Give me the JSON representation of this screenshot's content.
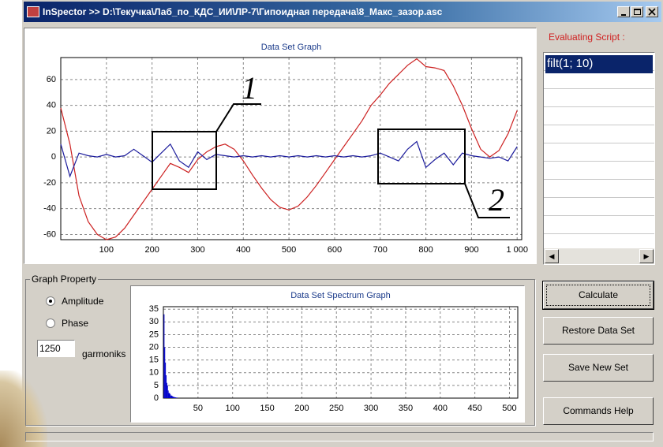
{
  "window": {
    "title": "InSpector >> D:\\Текучка\\Лаб_по_КДС_ИИ\\ЛР-7\\Гипоидная передача\\8_Макс_зазор.asc"
  },
  "chart_data": [
    {
      "type": "line",
      "title": "Data Set Graph",
      "x": [
        0,
        20,
        40,
        60,
        80,
        100,
        120,
        140,
        160,
        180,
        200,
        220,
        240,
        260,
        280,
        300,
        320,
        340,
        360,
        380,
        400,
        420,
        440,
        460,
        480,
        500,
        520,
        540,
        560,
        580,
        600,
        620,
        640,
        660,
        680,
        700,
        720,
        740,
        760,
        780,
        800,
        820,
        840,
        860,
        880,
        900,
        920,
        940,
        960,
        980,
        1000
      ],
      "series": [
        {
          "color": "#cc2020",
          "values": [
            38,
            10,
            -30,
            -50,
            -60,
            -64,
            -62,
            -55,
            -45,
            -35,
            -25,
            -15,
            -5,
            -8,
            -12,
            -2,
            4,
            8,
            10,
            6,
            -3,
            -14,
            -24,
            -33,
            -39,
            -41,
            -38,
            -31,
            -22,
            -12,
            -2,
            8,
            18,
            28,
            40,
            48,
            57,
            64,
            71,
            76,
            70,
            69,
            67,
            55,
            40,
            22,
            6,
            0,
            5,
            18,
            36
          ]
        },
        {
          "color": "#1c1c9c",
          "values": [
            10,
            -15,
            3,
            1,
            0,
            2,
            0,
            1,
            6,
            1,
            -4,
            3,
            10,
            -3,
            -8,
            4,
            -2,
            2,
            1,
            0,
            1,
            0,
            1,
            0,
            1,
            0,
            1,
            0,
            1,
            0,
            1,
            0,
            1,
            0,
            1,
            3,
            0,
            -3,
            6,
            12,
            -8,
            -2,
            3,
            -6,
            3,
            1,
            0,
            -1,
            0,
            -3,
            8
          ]
        }
      ],
      "xlim": [
        0,
        1010
      ],
      "ylim": [
        -64,
        77
      ],
      "xticks": [
        100,
        200,
        300,
        400,
        500,
        600,
        700,
        800,
        900,
        {
          "value": 1000,
          "label": "1 000"
        }
      ],
      "yticks": [
        -60,
        -40,
        -20,
        0,
        20,
        40,
        60
      ],
      "grid": true,
      "annotations": [
        "1",
        "2"
      ]
    },
    {
      "type": "bar",
      "title": "Data Set Spectrum Graph",
      "x": [
        1,
        2,
        3,
        4,
        5,
        6,
        7,
        8,
        9,
        10,
        11,
        12,
        13,
        14,
        15,
        16,
        17,
        18,
        19,
        20
      ],
      "values": [
        33,
        20,
        14,
        9,
        6,
        5,
        3,
        2,
        2,
        1.5,
        1,
        1,
        0.8,
        0.6,
        0.5,
        0.4,
        0.3,
        0.3,
        0.2,
        0.2
      ],
      "color": "#0000cc",
      "xlim": [
        0,
        512
      ],
      "ylim": [
        0,
        36
      ],
      "xticks": [
        50,
        100,
        150,
        200,
        250,
        300,
        350,
        400,
        450,
        500
      ],
      "yticks": [
        0,
        5,
        10,
        15,
        20,
        25,
        30,
        35
      ],
      "grid": true
    }
  ],
  "script_panel": {
    "label": "Evaluating Script :",
    "items": [
      "filt(1; 10)"
    ]
  },
  "graph_property": {
    "label": "Graph Property",
    "amplitude": "Amplitude",
    "phase": "Phase",
    "count": "1250",
    "count_label": "garmoniks"
  },
  "buttons": [
    "Calculate",
    "Restore Data Set",
    "Save New Set",
    "Commands Help"
  ]
}
